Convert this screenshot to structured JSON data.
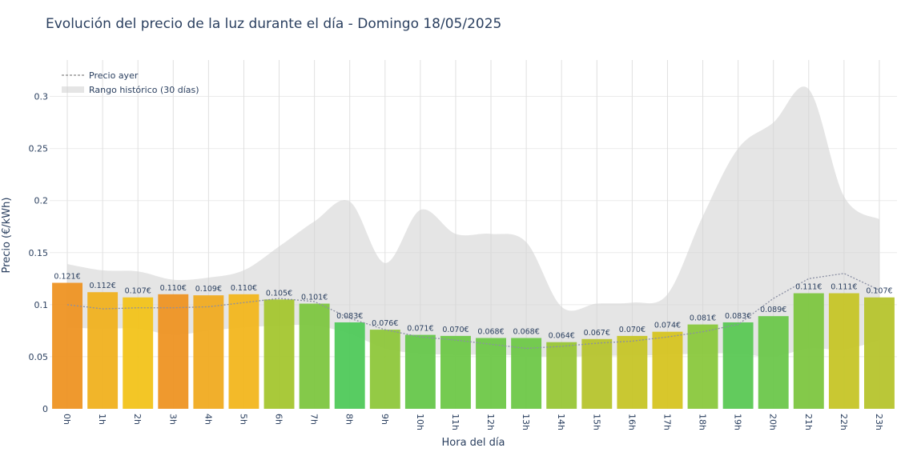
{
  "chart_data": {
    "type": "bar",
    "title": "Evolución del precio de la luz durante el día - Domingo 18/05/2025",
    "xlabel": "Hora del día",
    "ylabel": "Precio (€/kWh)",
    "ylim": [
      0,
      0.335
    ],
    "yticks": [
      0,
      0.05,
      0.1,
      0.15,
      0.2,
      0.25,
      0.3
    ],
    "ytick_labels": [
      "0",
      "0.05",
      "0.1",
      "0.15",
      "0.2",
      "0.25",
      "0.3"
    ],
    "categories": [
      "0h",
      "1h",
      "2h",
      "3h",
      "4h",
      "5h",
      "6h",
      "7h",
      "8h",
      "9h",
      "10h",
      "11h",
      "12h",
      "13h",
      "14h",
      "15h",
      "16h",
      "17h",
      "18h",
      "19h",
      "20h",
      "21h",
      "22h",
      "23h"
    ],
    "values": [
      0.121,
      0.112,
      0.107,
      0.11,
      0.109,
      0.11,
      0.105,
      0.101,
      0.083,
      0.076,
      0.071,
      0.07,
      0.068,
      0.068,
      0.064,
      0.067,
      0.07,
      0.074,
      0.081,
      0.083,
      0.089,
      0.111,
      0.111,
      0.107
    ],
    "data_labels": [
      "0.121€",
      "0.112€",
      "0.107€",
      "0.110€",
      "0.109€",
      "0.110€",
      "0.105€",
      "0.101€",
      "0.083€",
      "0.076€",
      "0.071€",
      "0.070€",
      "0.068€",
      "0.068€",
      "0.064€",
      "0.067€",
      "0.070€",
      "0.074€",
      "0.081€",
      "0.083€",
      "0.089€",
      "0.111€",
      "0.111€",
      "0.107€"
    ],
    "bar_colors": [
      "#ee9423",
      "#f0b11f",
      "#f2c31a",
      "#ee9423",
      "#f0ab21",
      "#f2b61d",
      "#a4c62f",
      "#7dc640",
      "#4fc95a",
      "#8ec73b",
      "#66c74b",
      "#6ec848",
      "#6ec848",
      "#6ec848",
      "#98c637",
      "#b6c42d",
      "#c6c527",
      "#d6c421",
      "#8ac83d",
      "#5ac854",
      "#6cc74b",
      "#7dc640",
      "#c6c527",
      "#b6c42d"
    ],
    "series": [
      {
        "name": "Precio ayer",
        "values": [
          0.1,
          0.096,
          0.097,
          0.097,
          0.098,
          0.102,
          0.106,
          0.103,
          0.087,
          0.076,
          0.069,
          0.066,
          0.062,
          0.058,
          0.06,
          0.063,
          0.065,
          0.069,
          0.074,
          0.081,
          0.106,
          0.125,
          0.13,
          0.114
        ]
      },
      {
        "name": "Rango histórico (30 días)",
        "min": [
          0.078,
          0.077,
          0.077,
          0.071,
          0.075,
          0.078,
          0.08,
          0.08,
          0.072,
          0.058,
          0.053,
          0.052,
          0.052,
          0.051,
          0.05,
          0.051,
          0.051,
          0.052,
          0.053,
          0.053,
          0.05,
          0.058,
          0.057,
          0.066
        ],
        "max": [
          0.139,
          0.133,
          0.132,
          0.124,
          0.126,
          0.133,
          0.156,
          0.18,
          0.199,
          0.14,
          0.191,
          0.168,
          0.168,
          0.16,
          0.098,
          0.101,
          0.102,
          0.11,
          0.185,
          0.25,
          0.275,
          0.307,
          0.204,
          0.182
        ]
      }
    ],
    "grid": true,
    "legend_position": "top-left"
  }
}
